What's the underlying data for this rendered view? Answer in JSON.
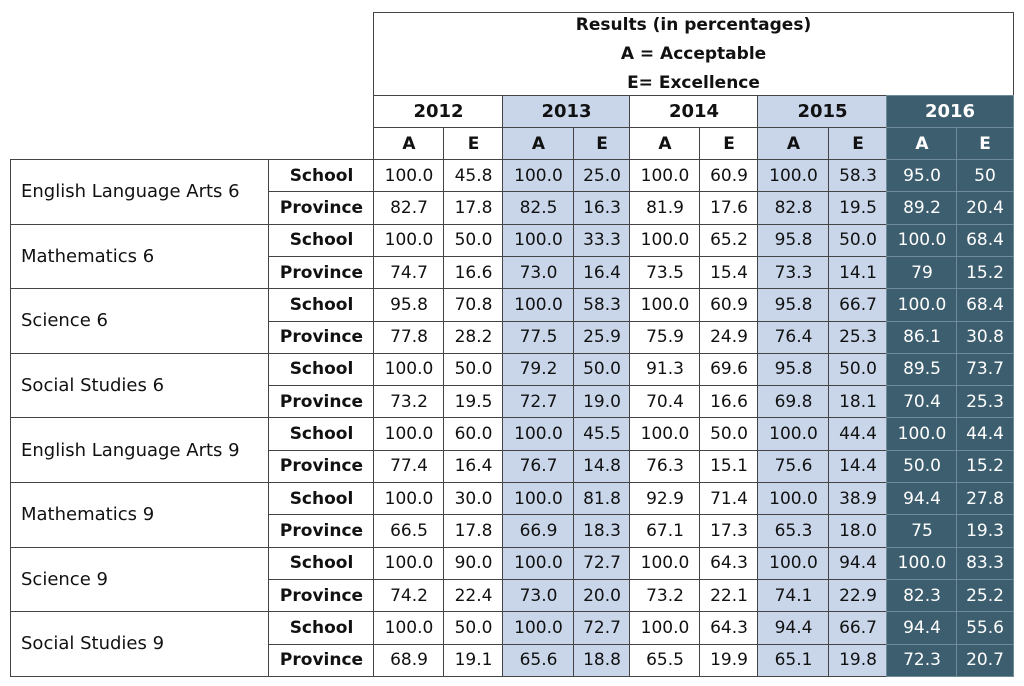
{
  "header": {
    "title_lines": [
      "Results (in percentages)",
      "A = Acceptable",
      "E= Excellence"
    ],
    "years": [
      "2012",
      "2013",
      "2014",
      "2015",
      "2016"
    ],
    "sub_labels": [
      "A",
      "E"
    ]
  },
  "level_labels": [
    "School",
    "Province"
  ],
  "subjects": [
    {
      "name": "English Language Arts 6",
      "school": [
        "100.0",
        "45.8",
        "100.0",
        "25.0",
        "100.0",
        "60.9",
        "100.0",
        "58.3",
        "95.0",
        "50"
      ],
      "province": [
        "82.7",
        "17.8",
        "82.5",
        "16.3",
        "81.9",
        "17.6",
        "82.8",
        "19.5",
        "89.2",
        "20.4"
      ]
    },
    {
      "name": "Mathematics 6",
      "school": [
        "100.0",
        "50.0",
        "100.0",
        "33.3",
        "100.0",
        "65.2",
        "95.8",
        "50.0",
        "100.0",
        "68.4"
      ],
      "province": [
        "74.7",
        "16.6",
        "73.0",
        "16.4",
        "73.5",
        "15.4",
        "73.3",
        "14.1",
        "79",
        "15.2"
      ]
    },
    {
      "name": "Science 6",
      "school": [
        "95.8",
        "70.8",
        "100.0",
        "58.3",
        "100.0",
        "60.9",
        "95.8",
        "66.7",
        "100.0",
        "68.4"
      ],
      "province": [
        "77.8",
        "28.2",
        "77.5",
        "25.9",
        "75.9",
        "24.9",
        "76.4",
        "25.3",
        "86.1",
        "30.8"
      ]
    },
    {
      "name": "Social Studies 6",
      "school": [
        "100.0",
        "50.0",
        "79.2",
        "50.0",
        "91.3",
        "69.6",
        "95.8",
        "50.0",
        "89.5",
        "73.7"
      ],
      "province": [
        "73.2",
        "19.5",
        "72.7",
        "19.0",
        "70.4",
        "16.6",
        "69.8",
        "18.1",
        "70.4",
        "25.3"
      ]
    },
    {
      "name": "English Language Arts 9",
      "school": [
        "100.0",
        "60.0",
        "100.0",
        "45.5",
        "100.0",
        "50.0",
        "100.0",
        "44.4",
        "100.0",
        "44.4"
      ],
      "province": [
        "77.4",
        "16.4",
        "76.7",
        "14.8",
        "76.3",
        "15.1",
        "75.6",
        "14.4",
        "50.0",
        "15.2"
      ]
    },
    {
      "name": "Mathematics 9",
      "school": [
        "100.0",
        "30.0",
        "100.0",
        "81.8",
        "92.9",
        "71.4",
        "100.0",
        "38.9",
        "94.4",
        "27.8"
      ],
      "province": [
        "66.5",
        "17.8",
        "66.9",
        "18.3",
        "67.1",
        "17.3",
        "65.3",
        "18.0",
        "75",
        "19.3"
      ]
    },
    {
      "name": "Science 9",
      "school": [
        "100.0",
        "90.0",
        "100.0",
        "72.7",
        "100.0",
        "64.3",
        "100.0",
        "94.4",
        "100.0",
        "83.3"
      ],
      "province": [
        "74.2",
        "22.4",
        "73.0",
        "20.0",
        "73.2",
        "22.1",
        "74.1",
        "22.9",
        "82.3",
        "25.2"
      ]
    },
    {
      "name": "Social Studies 9",
      "school": [
        "100.0",
        "50.0",
        "100.0",
        "72.7",
        "100.0",
        "64.3",
        "94.4",
        "66.7",
        "94.4",
        "55.6"
      ],
      "province": [
        "68.9",
        "19.1",
        "65.6",
        "18.8",
        "65.5",
        "19.9",
        "65.1",
        "19.8",
        "72.3",
        "20.7"
      ]
    }
  ],
  "colors": {
    "year_2013_2015_fill": "#c9d6ea",
    "year_2016_fill": "#3d5e6e",
    "year_2016_text": "#ffffff"
  }
}
